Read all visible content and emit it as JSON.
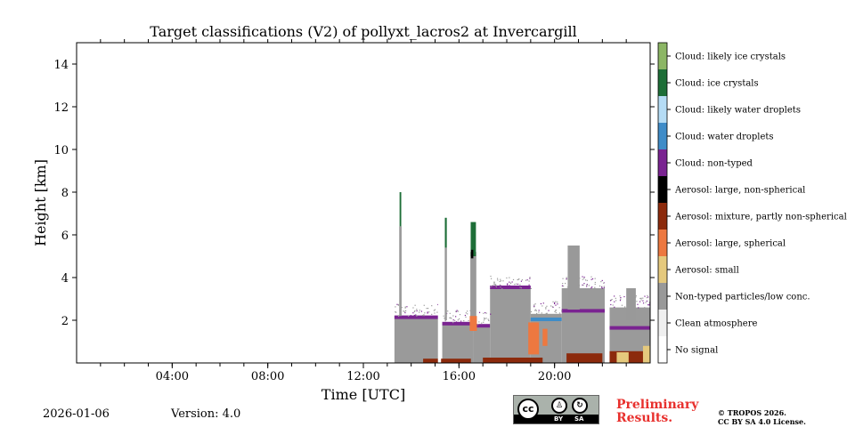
{
  "chart_data": {
    "type": "heatmap",
    "title": "Target classifications (V2) of pollyxt_lacros2 at Invercargill",
    "xlabel": "Time [UTC]",
    "ylabel": "Height [km]",
    "xlim_hours": [
      0,
      24
    ],
    "ylim_km": [
      0,
      15
    ],
    "x_ticks": [
      {
        "hour": 4,
        "label": "04:00"
      },
      {
        "hour": 8,
        "label": "08:00"
      },
      {
        "hour": 12,
        "label": "12:00"
      },
      {
        "hour": 16,
        "label": "16:00"
      },
      {
        "hour": 20,
        "label": "20:00"
      }
    ],
    "y_ticks": [
      {
        "km": 2,
        "label": "2"
      },
      {
        "km": 4,
        "label": "4"
      },
      {
        "km": 6,
        "label": "6"
      },
      {
        "km": 8,
        "label": "8"
      },
      {
        "km": 10,
        "label": "10"
      },
      {
        "km": 12,
        "label": "12"
      },
      {
        "km": 14,
        "label": "14"
      }
    ],
    "classes": [
      {
        "label": "No signal",
        "color": "#ffffff"
      },
      {
        "label": "Clean atmosphere",
        "color": "#f0f0f0"
      },
      {
        "label": "Non-typed particles/low conc.",
        "color": "#999999"
      },
      {
        "label": "Aerosol: small",
        "color": "#e5c97d"
      },
      {
        "label": "Aerosol: large, spherical",
        "color": "#ed7840"
      },
      {
        "label": "Aerosol: mixture, partly non-spherical",
        "color": "#8c2a0c"
      },
      {
        "label": "Aerosol: large, non-spherical",
        "color": "#000000"
      },
      {
        "label": "Cloud: non-typed",
        "color": "#7a2391"
      },
      {
        "label": "Cloud: water droplets",
        "color": "#3f8cc8"
      },
      {
        "label": "Cloud: likely water droplets",
        "color": "#b5dcf5"
      },
      {
        "label": "Cloud: ice crystals",
        "color": "#1d6e37"
      },
      {
        "label": "Cloud: likely ice crystals",
        "color": "#8cb665"
      }
    ],
    "segments": [
      {
        "t0": 13.3,
        "t1": 15.15,
        "top": 2.1,
        "upper": 2.2,
        "cloud": "#7a2391",
        "gaps": []
      },
      {
        "t0": 15.3,
        "t1": 16.6,
        "top": 1.8,
        "upper": 1.9,
        "cloud": "#7a2391",
        "gaps": []
      },
      {
        "t0": 16.6,
        "t1": 17.3,
        "top": 1.7,
        "upper": 1.8,
        "cloud": "#7a2391",
        "gaps": []
      },
      {
        "t0": 17.3,
        "t1": 19.0,
        "top": 3.5,
        "upper": 3.5,
        "cloud": "#7a2391",
        "gaps": []
      },
      {
        "t0": 19.0,
        "t1": 20.3,
        "top": 2.0,
        "upper": 2.3,
        "cloud": "#3f8cc8",
        "gaps": []
      },
      {
        "t0": 20.3,
        "t1": 22.1,
        "top": 2.4,
        "upper": 3.5,
        "cloud": "#7a2391",
        "gaps": []
      },
      {
        "t0": 22.3,
        "t1": 24.0,
        "top": 1.6,
        "upper": 2.6,
        "cloud": "#7a2391",
        "gaps": []
      }
    ],
    "columns": [
      {
        "t": 13.55,
        "w": 0.1,
        "base": 2.2,
        "top": 6.4,
        "class_color": "#999999"
      },
      {
        "t": 13.55,
        "w": 0.07,
        "base": 6.4,
        "top": 8.0,
        "class_color": "#1d6e37"
      },
      {
        "t": 15.45,
        "w": 0.09,
        "base": 2.0,
        "top": 5.4,
        "class_color": "#999999"
      },
      {
        "t": 15.45,
        "w": 0.08,
        "base": 5.4,
        "top": 6.8,
        "class_color": "#1d6e37"
      },
      {
        "t": 16.6,
        "w": 0.25,
        "base": 1.8,
        "top": 5.2,
        "class_color": "#999999"
      },
      {
        "t": 16.6,
        "w": 0.22,
        "base": 5.0,
        "top": 6.6,
        "class_color": "#1d6e37"
      },
      {
        "t": 16.55,
        "w": 0.1,
        "base": 4.9,
        "top": 5.3,
        "class_color": "#000000"
      },
      {
        "t": 20.8,
        "w": 0.5,
        "base": 2.5,
        "top": 5.5,
        "class_color": "#999999"
      },
      {
        "t": 23.2,
        "w": 0.4,
        "base": 2.0,
        "top": 3.5,
        "class_color": "#999999"
      }
    ],
    "surface_layers": [
      {
        "t0": 14.5,
        "t1": 16.5,
        "top": 0.2,
        "class_color": "#8c2a0c"
      },
      {
        "t0": 17.0,
        "t1": 19.5,
        "top": 0.25,
        "class_color": "#8c2a0c"
      },
      {
        "t0": 20.5,
        "t1": 22.0,
        "top": 0.45,
        "class_color": "#8c2a0c"
      },
      {
        "t0": 22.3,
        "t1": 24.0,
        "top": 0.55,
        "class_color": "#8c2a0c"
      },
      {
        "t0": 22.6,
        "t1": 23.1,
        "top": 0.5,
        "class_color": "#e5c97d"
      },
      {
        "t0": 23.7,
        "t1": 24.0,
        "top": 0.8,
        "class_color": "#e5c97d"
      }
    ],
    "plumes": [
      {
        "t0": 18.9,
        "t1": 19.35,
        "top": 1.9,
        "bottom": 0.4,
        "class_color": "#ed7840"
      },
      {
        "t0": 19.5,
        "t1": 19.7,
        "top": 1.6,
        "bottom": 0.8,
        "class_color": "#ed7840"
      },
      {
        "t0": 16.45,
        "t1": 16.75,
        "top": 2.2,
        "bottom": 1.5,
        "class_color": "#ed7840"
      }
    ],
    "footer": {
      "date": "2026-01-06",
      "version": "Version: 4.0"
    }
  },
  "license": {
    "cc": "cc",
    "by": "BY",
    "sa": "SA",
    "preliminary_line1": "Preliminary",
    "preliminary_line2": "Results.",
    "copyright_line1": "© TROPOS 2026.",
    "copyright_line2": "CC BY SA 4.0 License."
  }
}
